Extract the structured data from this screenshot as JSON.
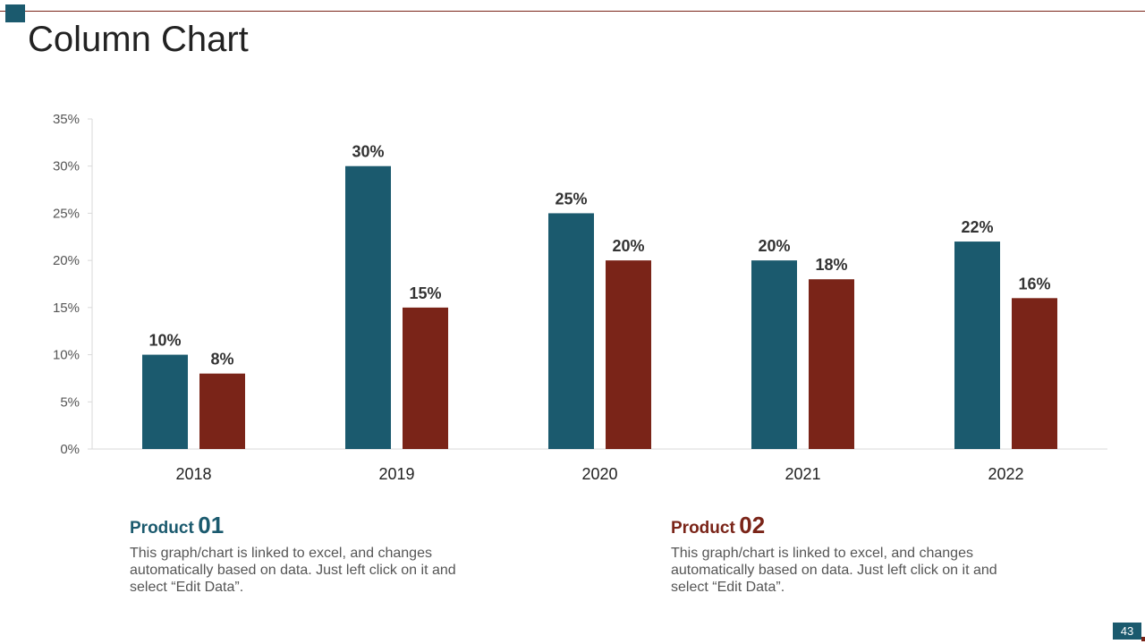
{
  "slide": {
    "title": "Column Chart",
    "page_number": "43"
  },
  "colors": {
    "product_01": "#1b5a6e",
    "product_02": "#7a2418",
    "axis": "#d9d9d9"
  },
  "legend": [
    {
      "word": "Product",
      "number": "01",
      "description": "This graph/chart is linked to excel, and changes automatically based on data. Just left click on it and select “Edit Data”."
    },
    {
      "word": "Product",
      "number": "02",
      "description": "This graph/chart is linked to excel, and changes automatically based on data. Just left click on it and select “Edit Data”."
    }
  ],
  "chart_data": {
    "type": "bar",
    "title": "",
    "xlabel": "",
    "ylabel": "",
    "categories": [
      "2018",
      "2019",
      "2020",
      "2021",
      "2022"
    ],
    "series": [
      {
        "name": "Product 01",
        "values": [
          10,
          30,
          25,
          20,
          22
        ],
        "labels": [
          "10%",
          "30%",
          "25%",
          "20%",
          "22%"
        ]
      },
      {
        "name": "Product 02",
        "values": [
          8,
          15,
          20,
          18,
          16
        ],
        "labels": [
          "8%",
          "15%",
          "20%",
          "18%",
          "16%"
        ]
      }
    ],
    "ylim": [
      0,
      35
    ],
    "yticks": [
      0,
      5,
      10,
      15,
      20,
      25,
      30,
      35
    ],
    "ytick_labels": [
      "0%",
      "5%",
      "10%",
      "15%",
      "20%",
      "25%",
      "30%",
      "35%"
    ],
    "grid": false,
    "legend_position": "none"
  }
}
